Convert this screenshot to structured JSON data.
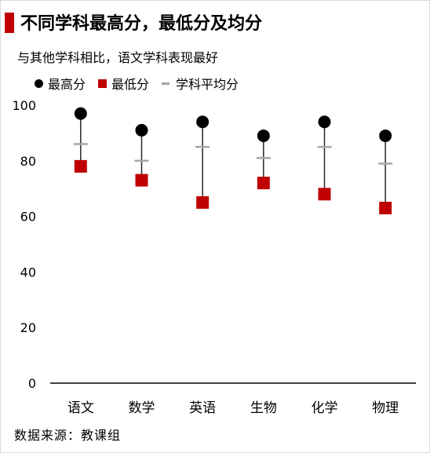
{
  "title": "不同学科最高分，最低分及均分",
  "subtitle": "与其他学科相比，语文学科表现最好",
  "legend": {
    "max_label": "最高分",
    "min_label": "最低分",
    "avg_label": "学科平均分"
  },
  "source": "数据来源：教课组",
  "colors": {
    "max": "#000000",
    "min": "#c00000",
    "avg": "#a6a6a6",
    "accent": "#c00000"
  },
  "chart_data": {
    "type": "scatter",
    "categories": [
      "语文",
      "数学",
      "英语",
      "生物",
      "化学",
      "物理"
    ],
    "series": [
      {
        "name": "最高分",
        "values": [
          97,
          91,
          94,
          89,
          94,
          89
        ]
      },
      {
        "name": "最低分",
        "values": [
          78,
          73,
          65,
          72,
          68,
          63
        ]
      },
      {
        "name": "学科平均分",
        "values": [
          86,
          80,
          85,
          81,
          85,
          79
        ]
      }
    ],
    "yticks": [
      0,
      20,
      40,
      60,
      80,
      100
    ],
    "ylim": [
      0,
      100
    ],
    "grid": false,
    "legend_position": "top-left"
  }
}
